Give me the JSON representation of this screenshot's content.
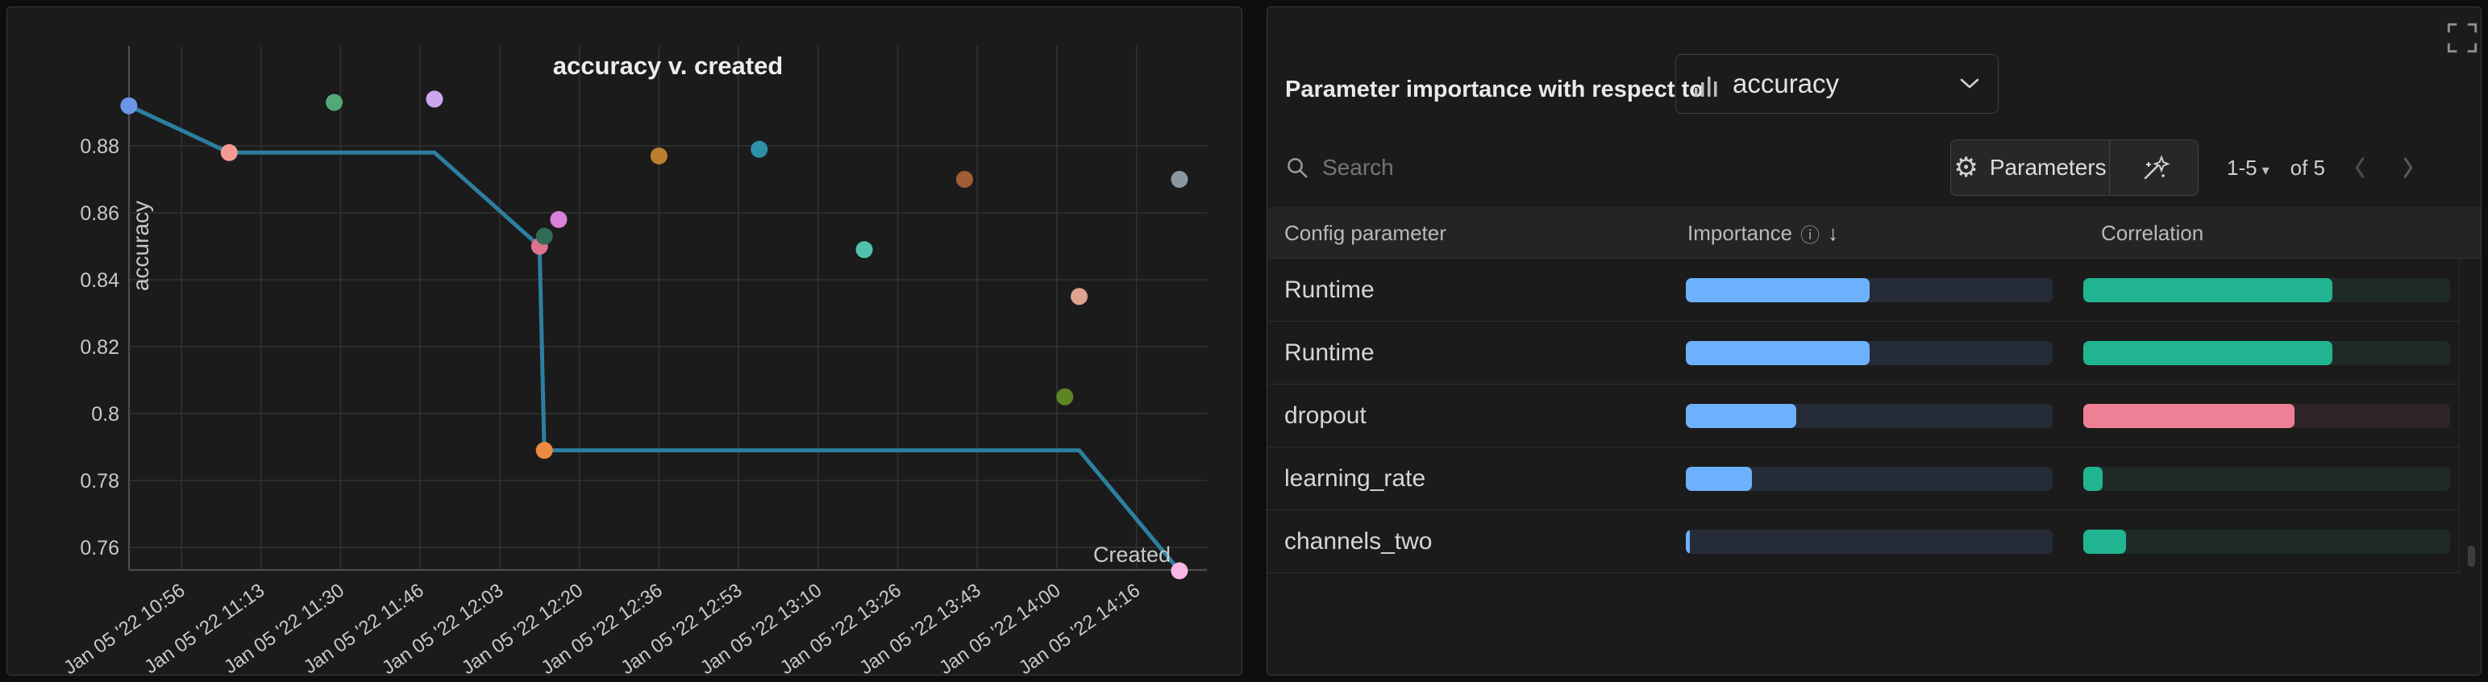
{
  "chart_data": {
    "type": "scatter",
    "title": "accuracy v. created",
    "xlabel": "Created",
    "ylabel": "accuracy",
    "x_tick_labels": [
      "Jan 05 '22 10:56",
      "Jan 05 '22 11:13",
      "Jan 05 '22 11:30",
      "Jan 05 '22 11:46",
      "Jan 05 '22 12:03",
      "Jan 05 '22 12:20",
      "Jan 05 '22 12:36",
      "Jan 05 '22 12:53",
      "Jan 05 '22 13:10",
      "Jan 05 '22 13:26",
      "Jan 05 '22 13:43",
      "Jan 05 '22 14:00",
      "Jan 05 '22 14:16"
    ],
    "y_tick_labels": [
      "0.88",
      "0.86",
      "0.84",
      "0.82",
      "0.8",
      "0.78",
      "0.76"
    ],
    "ylim": [
      0.748,
      0.905
    ],
    "grid": true,
    "points": [
      {
        "time": "10:45",
        "accuracy": 0.892,
        "color": "#6b96e8"
      },
      {
        "time": "11:06",
        "accuracy": 0.878,
        "color": "#f59a93"
      },
      {
        "time": "11:28",
        "accuracy": 0.893,
        "color": "#53a877"
      },
      {
        "time": "11:49",
        "accuracy": 0.894,
        "color": "#cda6f0"
      },
      {
        "time": "12:11",
        "accuracy": 0.85,
        "color": "#dc7490"
      },
      {
        "time": "12:12",
        "accuracy": 0.853,
        "color": "#316b55"
      },
      {
        "time": "12:15",
        "accuracy": 0.858,
        "color": "#da80dc"
      },
      {
        "time": "12:12",
        "accuracy": 0.789,
        "color": "#ee8a3f"
      },
      {
        "time": "12:36",
        "accuracy": 0.877,
        "color": "#bd7e2e"
      },
      {
        "time": "12:57",
        "accuracy": 0.879,
        "color": "#2d92a8"
      },
      {
        "time": "13:19",
        "accuracy": 0.849,
        "color": "#4fc3ae"
      },
      {
        "time": "13:40",
        "accuracy": 0.87,
        "color": "#a05d35"
      },
      {
        "time": "14:01",
        "accuracy": 0.805,
        "color": "#5d8526"
      },
      {
        "time": "14:04",
        "accuracy": 0.835,
        "color": "#e0a38f"
      },
      {
        "time": "14:25",
        "accuracy": 0.87,
        "color": "#8b97a0"
      },
      {
        "time": "14:25",
        "accuracy": 0.753,
        "color": "#fbb6e8"
      }
    ],
    "line_series": {
      "color": "#2d7f9f",
      "points": [
        [
          "10:45",
          0.892
        ],
        [
          "11:06",
          0.878
        ],
        [
          "11:49",
          0.878
        ],
        [
          "12:11",
          0.85
        ],
        [
          "12:12",
          0.789
        ],
        [
          "14:04",
          0.789
        ],
        [
          "14:25",
          0.753
        ]
      ]
    }
  },
  "right_panel": {
    "title": "Parameter importance with respect to",
    "metric_dropdown": {
      "value": "accuracy",
      "icon": "bar-chart-icon"
    },
    "search": {
      "placeholder": "Search"
    },
    "parameters_button_label": "Parameters",
    "pagination": {
      "range_label": "1-5",
      "caret": "▾",
      "of_label": "of 5"
    },
    "table": {
      "columns": [
        "Config parameter",
        "Importance",
        "Correlation"
      ],
      "info_icon": "ⓘ",
      "sort_desc_icon": "↓",
      "rows": [
        {
          "parameter": "Runtime",
          "importance": 0.5,
          "correlation": 0.68,
          "correlation_sign": "positive"
        },
        {
          "parameter": "Runtime",
          "importance": 0.5,
          "correlation": 0.68,
          "correlation_sign": "positive"
        },
        {
          "parameter": "dropout",
          "importance": 0.3,
          "correlation": 0.575,
          "correlation_sign": "negative"
        },
        {
          "parameter": "learning_rate",
          "importance": 0.18,
          "correlation": 0.053,
          "correlation_sign": "positive"
        },
        {
          "parameter": "channels_two",
          "importance": 0.012,
          "correlation": 0.116,
          "correlation_sign": "positive"
        }
      ]
    }
  },
  "colors": {
    "panel_bg": "#1b1b1b",
    "panel_border": "#3a3a3a",
    "gridline": "#323232",
    "axis": "#4d4d4d",
    "tick_text": "#c9c9c9",
    "title_text": "#ededed",
    "line": "#2d7f9f",
    "importance_fill": "#6cb1fb",
    "importance_track": "#262c37",
    "correlation_positive": "#21b491",
    "correlation_negative": "#ee8096",
    "correlation_track_positive": "#1f2a27",
    "correlation_track_negative": "#2d2527"
  }
}
